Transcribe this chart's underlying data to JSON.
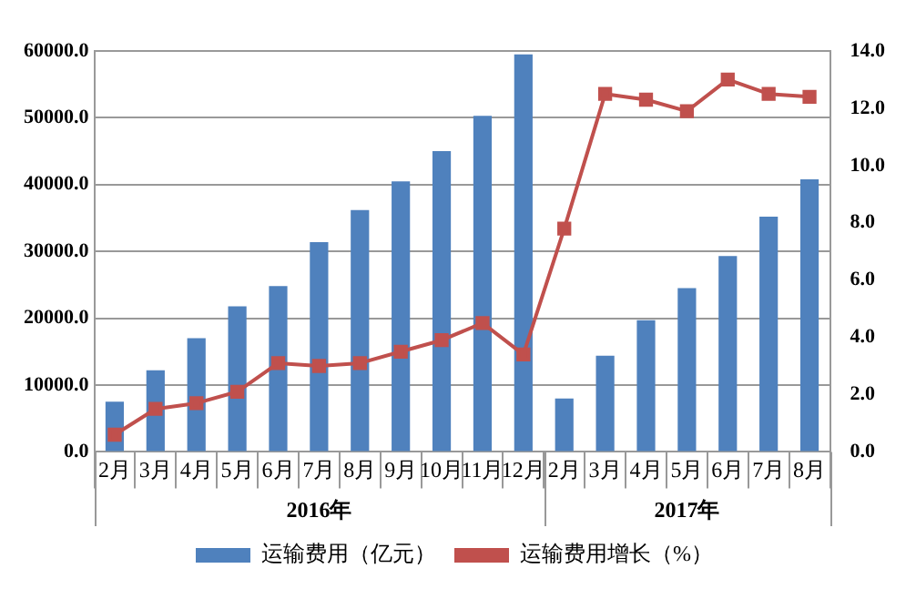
{
  "chart_data": {
    "type": "bar",
    "categories": [
      "2月",
      "3月",
      "4月",
      "5月",
      "6月",
      "7月",
      "8月",
      "9月",
      "10月",
      "11月",
      "12月",
      "2月",
      "3月",
      "4月",
      "5月",
      "6月",
      "7月",
      "8月"
    ],
    "series": [
      {
        "name": "运输费用（亿元）",
        "color": "#4f81bd",
        "values": [
          7500,
          12200,
          17000,
          21800,
          24800,
          31400,
          36200,
          40500,
          45000,
          50300,
          59500,
          8000,
          14400,
          19700,
          24500,
          29300,
          35200,
          40800
        ]
      },
      {
        "name": "运输费用增长（%）",
        "type": "line",
        "axis": "y2",
        "color": "#c0504d",
        "marker": "square",
        "values": [
          0.6,
          1.5,
          1.7,
          2.1,
          3.1,
          3.0,
          3.1,
          3.5,
          3.9,
          4.5,
          3.4,
          7.8,
          12.5,
          12.3,
          11.9,
          13.0,
          12.5,
          12.4
        ]
      }
    ],
    "annotations": [
      "2016年",
      "2017年"
    ],
    "ylim": [
      0,
      60000
    ],
    "yticks": [
      {
        "value": 0,
        "label": "0.0"
      },
      {
        "value": 10000,
        "label": "10000.0"
      },
      {
        "value": 20000,
        "label": "20000.0"
      },
      {
        "value": 30000,
        "label": "30000.0"
      },
      {
        "value": 40000,
        "label": "40000.0"
      },
      {
        "value": 50000,
        "label": "50000.0"
      },
      {
        "value": 60000,
        "label": "60000.0"
      }
    ],
    "y2lim": [
      0,
      14
    ],
    "y2ticks": [
      {
        "value": 0,
        "label": "0.0"
      },
      {
        "value": 2,
        "label": "2.0"
      },
      {
        "value": 4,
        "label": "4.0"
      },
      {
        "value": 6,
        "label": "6.0"
      },
      {
        "value": 8,
        "label": "8.0"
      },
      {
        "value": 10,
        "label": "10.0"
      },
      {
        "value": 12,
        "label": "12.0"
      },
      {
        "value": 14,
        "label": "14.0"
      }
    ],
    "grid": "y",
    "legend": "bottom"
  }
}
